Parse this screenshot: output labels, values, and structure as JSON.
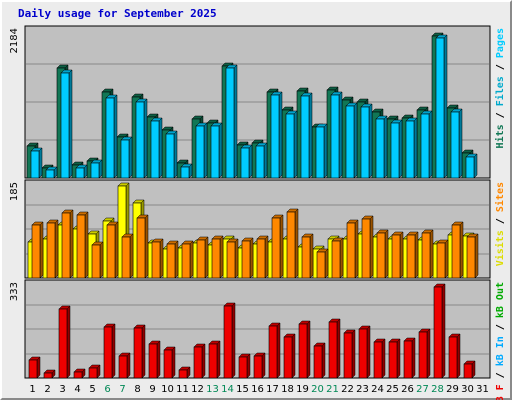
{
  "title": "Daily usage for September 2025",
  "colors": {
    "hits": "#117755",
    "files": "#00ccff",
    "pages": "#00ccff",
    "visits": "#ffff00",
    "sites": "#ff8800",
    "kb_in": "#00aaff",
    "kb_out": "#00aa00",
    "kb_f": "#ee0000",
    "weekend": "#008855",
    "weekday": "#000000",
    "panel": "#c0c0c0",
    "gridline": "#888888"
  },
  "right_labels": {
    "top": [
      {
        "text": "Hits",
        "color": "#117755"
      },
      {
        "text": " / ",
        "color": "#000000"
      },
      {
        "text": "Files",
        "color": "#00aacc"
      },
      {
        "text": " / ",
        "color": "#000000"
      },
      {
        "text": "Pages",
        "color": "#00ccff"
      }
    ],
    "middle": [
      {
        "text": "Visits",
        "color": "#dddd00"
      },
      {
        "text": " / ",
        "color": "#000000"
      },
      {
        "text": "Sites",
        "color": "#ff8800"
      }
    ],
    "bottom": [
      {
        "text": "kB F",
        "color": "#ee0000"
      },
      {
        "text": " / ",
        "color": "#000000"
      },
      {
        "text": "kB In",
        "color": "#00aaff"
      },
      {
        "text": " / ",
        "color": "#000000"
      },
      {
        "text": "kB Out",
        "color": "#00aa00"
      }
    ]
  },
  "chart_data": [
    {
      "type": "bar",
      "name": "hits-files",
      "ymax_label": "2184",
      "ylim": [
        0,
        2184
      ],
      "grid": true,
      "x": [
        1,
        2,
        3,
        4,
        5,
        6,
        7,
        8,
        9,
        10,
        11,
        12,
        13,
        14,
        15,
        16,
        17,
        18,
        19,
        20,
        21,
        22,
        23,
        24,
        25,
        26,
        27,
        28,
        29,
        30,
        31
      ],
      "weekend_days": [
        6,
        7,
        13,
        14,
        20,
        21,
        27,
        28
      ],
      "series": [
        {
          "name": "Hits",
          "values": [
            485,
            157,
            1640,
            193,
            260,
            1290,
            620,
            1210,
            910,
            723,
            223,
            880,
            830,
            1680,
            488,
            525,
            1290,
            1020,
            1300,
            760,
            1320,
            1160,
            1135,
            990,
            890,
            900,
            1020,
            2130,
            1040,
            378,
            0
          ]
        },
        {
          "name": "Files",
          "values": [
            410,
            113,
            1565,
            150,
            230,
            1195,
            565,
            1140,
            850,
            663,
            160,
            785,
            775,
            1640,
            450,
            485,
            1245,
            950,
            1230,
            760,
            1240,
            1075,
            1065,
            880,
            820,
            850,
            960,
            2090,
            980,
            320,
            0
          ]
        }
      ]
    },
    {
      "type": "bar",
      "name": "visits-sites",
      "ymax_label": "185",
      "ylim": [
        0,
        185
      ],
      "grid": true,
      "x": [
        1,
        2,
        3,
        4,
        5,
        6,
        7,
        8,
        9,
        10,
        11,
        12,
        13,
        14,
        15,
        16,
        17,
        18,
        19,
        20,
        21,
        22,
        23,
        24,
        25,
        26,
        27,
        28,
        29,
        30,
        31
      ],
      "weekend_days": [
        6,
        7,
        13,
        14,
        20,
        21,
        27,
        28
      ],
      "series": [
        {
          "name": "Visits",
          "values": [
            73,
            78,
            106,
            98,
            89,
            114,
            185,
            150,
            70,
            59,
            60,
            71,
            67,
            78,
            60,
            68,
            72,
            78,
            62,
            58,
            79,
            79,
            89,
            82,
            79,
            79,
            76,
            68,
            86,
            85,
            0
          ]
        },
        {
          "name": "Sites",
          "values": [
            107,
            111,
            130,
            127,
            66,
            106,
            82,
            121,
            73,
            69,
            68,
            77,
            78,
            73,
            75,
            78,
            120,
            132,
            82,
            52,
            75,
            110,
            118,
            90,
            87,
            86,
            90,
            71,
            107,
            82,
            0
          ]
        }
      ]
    },
    {
      "type": "bar",
      "name": "kb",
      "ymax_label": "333",
      "ylim": [
        0,
        333
      ],
      "grid": true,
      "x": [
        1,
        2,
        3,
        4,
        5,
        6,
        7,
        8,
        9,
        10,
        11,
        12,
        13,
        14,
        15,
        16,
        17,
        18,
        19,
        20,
        21,
        22,
        23,
        24,
        25,
        26,
        27,
        28,
        29,
        30,
        31
      ],
      "weekend_days": [
        6,
        7,
        13,
        14,
        20,
        21,
        27,
        28
      ],
      "series": [
        {
          "name": "kB F",
          "values": [
            65,
            19,
            250,
            22,
            37,
            185,
            80,
            180,
            124,
            100,
            29,
            114,
            122,
            260,
            77,
            80,
            188,
            150,
            196,
            115,
            202,
            164,
            176,
            131,
            129,
            135,
            165,
            328,
            150,
            52,
            0
          ]
        }
      ]
    }
  ]
}
